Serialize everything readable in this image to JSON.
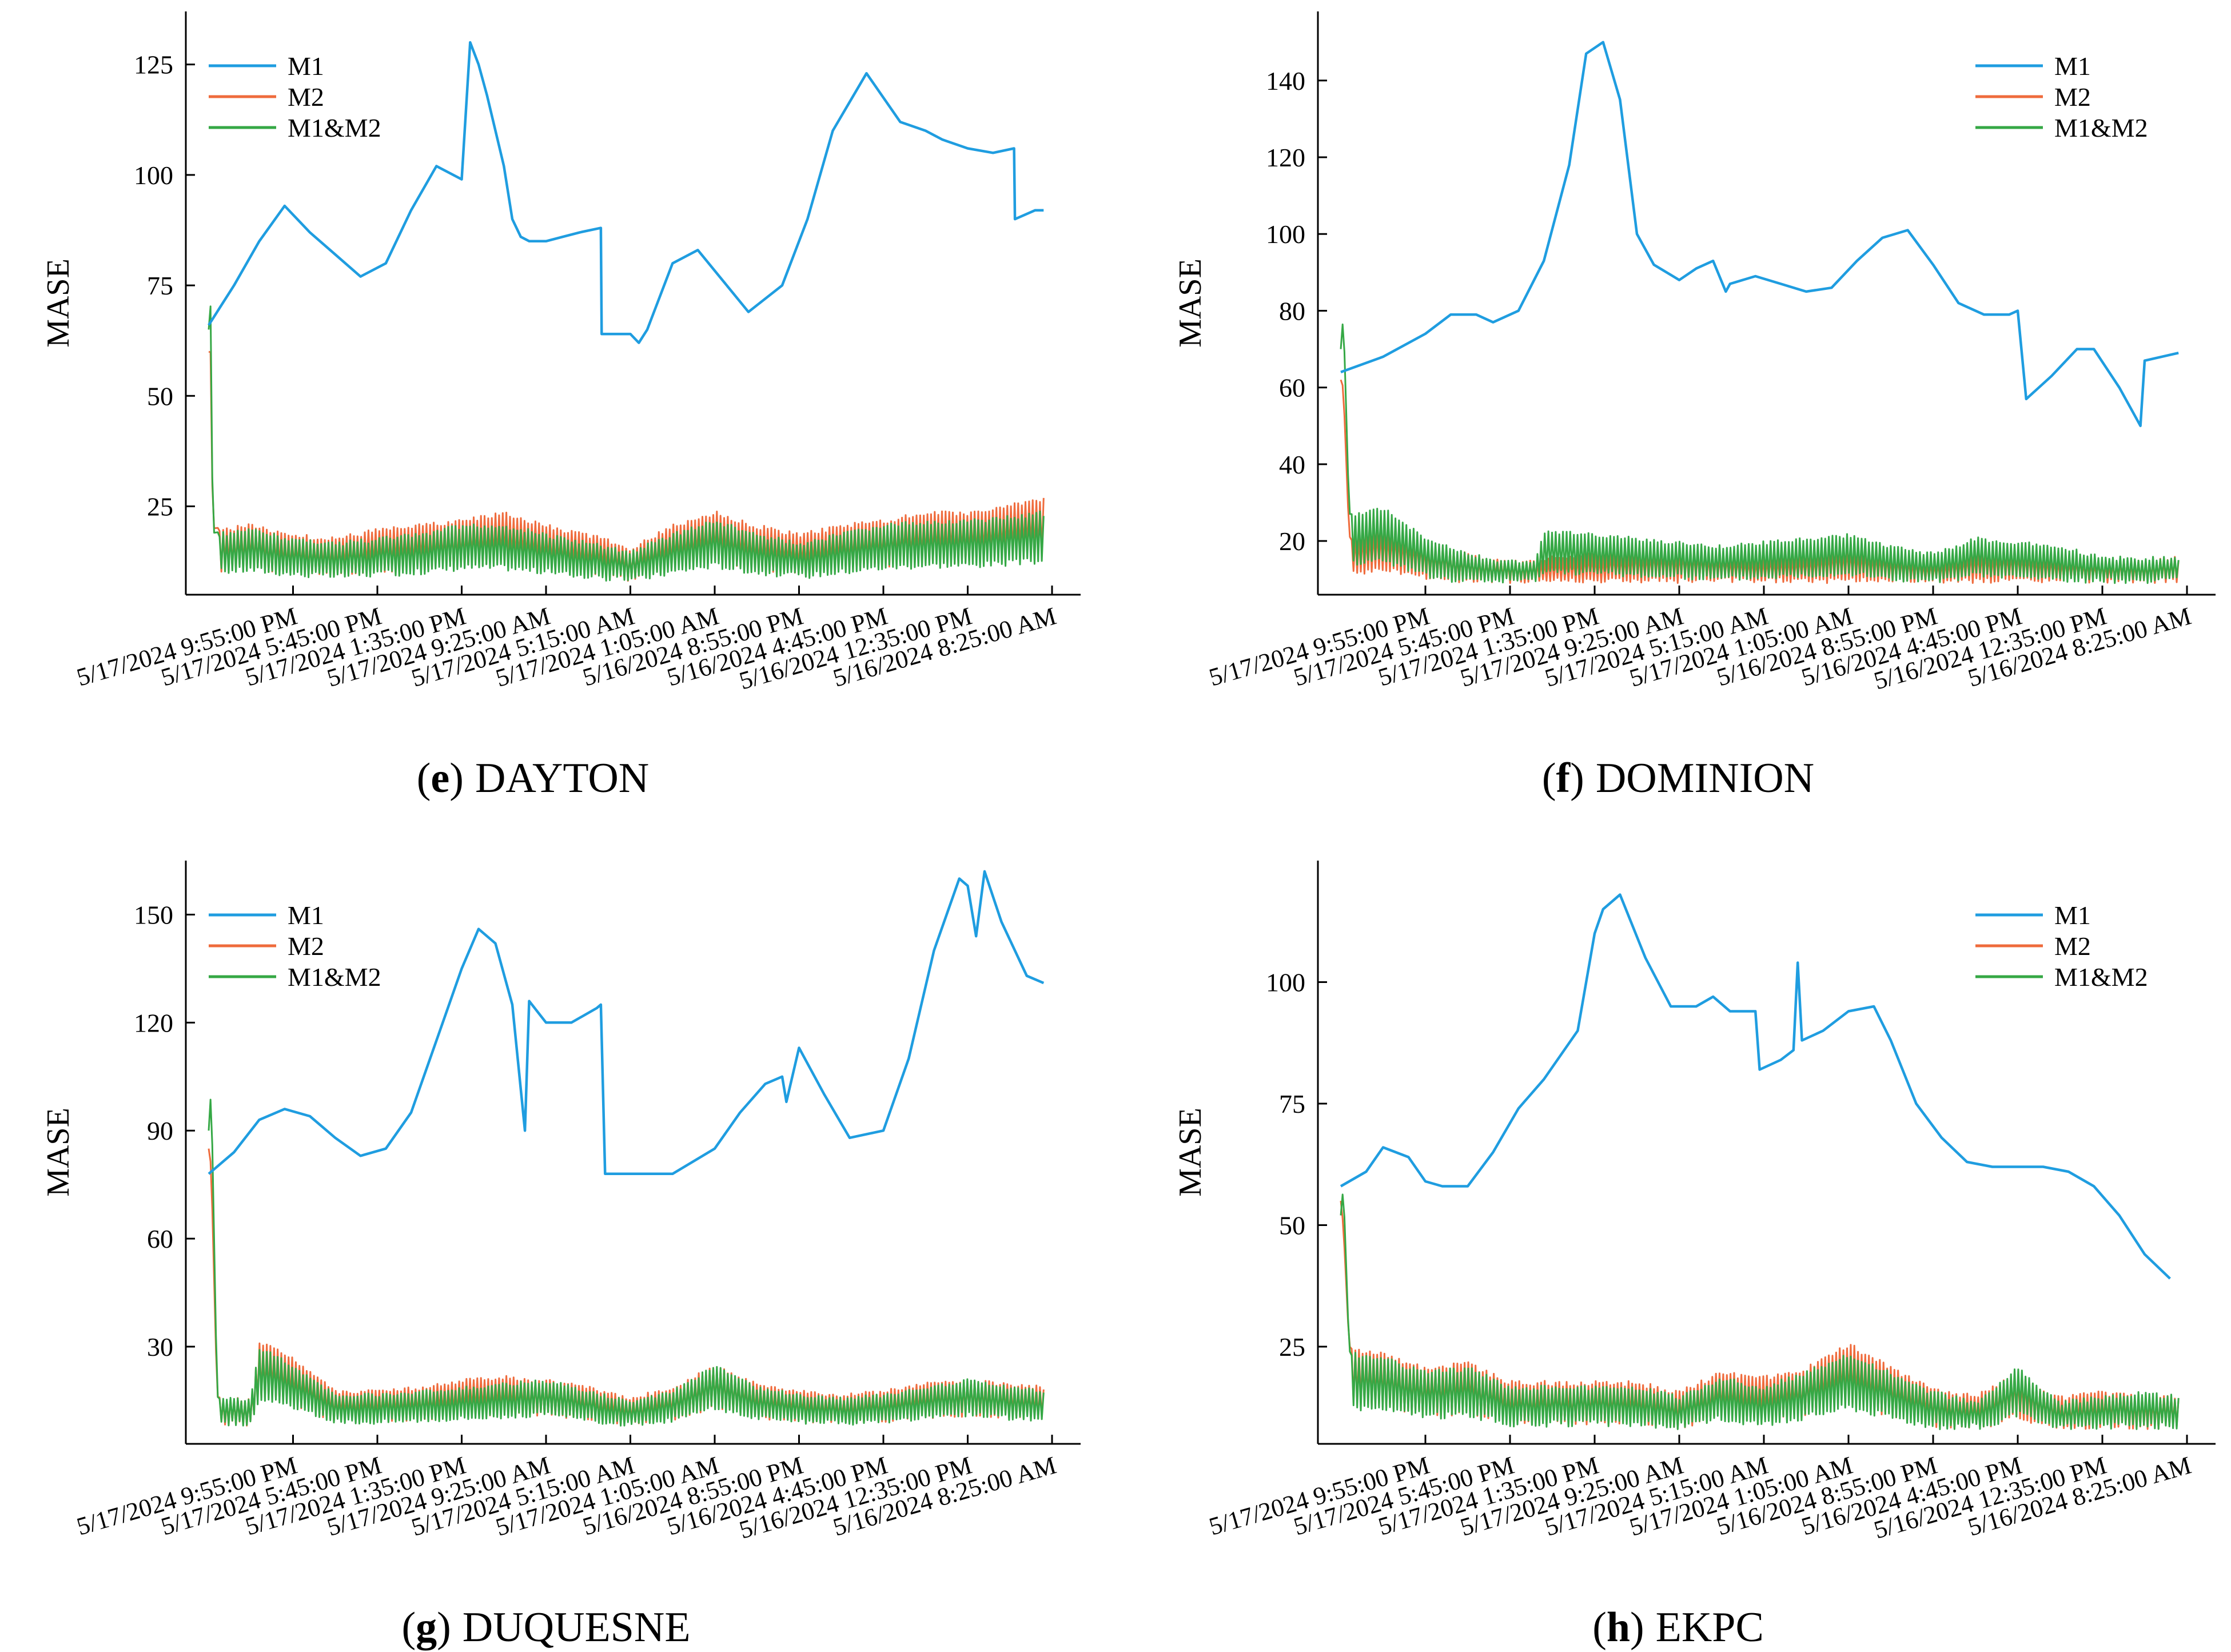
{
  "colors": {
    "M1": "#1f9de0",
    "M2": "#ef6b3c",
    "M1&M2": "#35a845",
    "axis": "#000000"
  },
  "chart_data": [
    {
      "type": "line",
      "caption": {
        "letter": "e",
        "paren_open": "(",
        "paren_close": ")",
        "title": "DAYTON"
      },
      "ylabel": "MASE",
      "ylim": [
        5,
        137
      ],
      "yticks": [
        25,
        50,
        75,
        100,
        125
      ],
      "categories": [
        "5/17/2024 9:55:00 PM",
        "5/17/2024 5:45:00 PM",
        "5/17/2024 1:35:00 PM",
        "5/17/2024 9:25:00 AM",
        "5/17/2024 5:15:00 AM",
        "5/17/2024 1:05:00 AM",
        "5/16/2024 8:55:00 PM",
        "5/16/2024 4:45:00 PM",
        "5/16/2024 12:35:00 PM",
        "5/16/2024 8:25:00 AM"
      ],
      "x_range": [
        0,
        10
      ],
      "legend_position": "top-left",
      "series": [
        {
          "name": "M1",
          "x": [
            0,
            0.3,
            0.6,
            0.9,
            1.2,
            1.5,
            1.8,
            2.1,
            2.4,
            2.7,
            3.0,
            3.1,
            3.2,
            3.3,
            3.5,
            3.6,
            3.7,
            3.8,
            4.0,
            4.2,
            4.4,
            4.65,
            4.66,
            5.0,
            5.1,
            5.2,
            5.5,
            5.8,
            6.1,
            6.4,
            6.8,
            7.1,
            7.4,
            7.8,
            8.2,
            8.5,
            8.7,
            9.0,
            9.3,
            9.55,
            9.56,
            9.8,
            9.9
          ],
          "values": [
            66,
            75,
            85,
            93,
            87,
            82,
            77,
            80,
            92,
            102,
            99,
            130,
            125,
            118,
            102,
            90,
            86,
            85,
            85,
            86,
            87,
            88,
            64,
            64,
            62,
            65,
            80,
            83,
            76,
            69,
            75,
            90,
            110,
            123,
            112,
            110,
            108,
            106,
            105,
            106,
            90,
            92,
            92
          ]
        },
        {
          "name": "M2",
          "x": [
            0,
            0.02,
            0.05,
            0.5,
            1.0,
            1.5,
            2.0,
            2.5,
            3.0,
            3.5,
            4.0,
            4.5,
            5.0,
            5.5,
            6.0,
            6.5,
            7.0,
            7.5,
            8.0,
            8.5,
            9.0,
            9.5,
            9.9
          ],
          "values": [
            60,
            62,
            20,
            21,
            19,
            18,
            20,
            21,
            22,
            24,
            21,
            19,
            16,
            21,
            24,
            21,
            19,
            21,
            22,
            24,
            24,
            26,
            27
          ]
        },
        {
          "name": "M1&M2",
          "x": [
            0,
            0.02,
            0.05,
            0.5,
            1.0,
            1.5,
            2.0,
            2.5,
            3.0,
            3.5,
            4.0,
            4.5,
            5.0,
            5.5,
            6.0,
            6.5,
            7.0,
            7.5,
            8.0,
            8.5,
            9.0,
            9.5,
            9.9
          ],
          "values": [
            65,
            73,
            19,
            20,
            18,
            17,
            18,
            19,
            21,
            21,
            19,
            17,
            15,
            19,
            22,
            19,
            17,
            19,
            21,
            22,
            22,
            23,
            24
          ]
        }
      ]
    },
    {
      "type": "line",
      "caption": {
        "letter": "f",
        "paren_open": "(",
        "paren_close": ")",
        "title": "DOMINION"
      },
      "ylabel": "MASE",
      "ylim": [
        6,
        158
      ],
      "yticks": [
        20,
        40,
        60,
        80,
        100,
        120,
        140
      ],
      "categories": [
        "5/17/2024 9:55:00 PM",
        "5/17/2024 5:45:00 PM",
        "5/17/2024 1:35:00 PM",
        "5/17/2024 9:25:00 AM",
        "5/17/2024 5:15:00 AM",
        "5/17/2024 1:05:00 AM",
        "5/16/2024 8:55:00 PM",
        "5/16/2024 4:45:00 PM",
        "5/16/2024 12:35:00 PM",
        "5/16/2024 8:25:00 AM"
      ],
      "x_range": [
        0,
        10
      ],
      "legend_position": "top-right",
      "series": [
        {
          "name": "M1",
          "x": [
            0,
            0.5,
            1.0,
            1.3,
            1.6,
            1.8,
            2.1,
            2.4,
            2.7,
            2.9,
            3.1,
            3.3,
            3.5,
            3.7,
            4.0,
            4.2,
            4.4,
            4.55,
            4.6,
            4.9,
            5.2,
            5.5,
            5.8,
            6.1,
            6.4,
            6.7,
            7.0,
            7.3,
            7.6,
            7.9,
            8.0,
            8.1,
            8.4,
            8.7,
            8.9,
            9.2,
            9.45,
            9.5,
            9.7,
            9.9
          ],
          "values": [
            64,
            68,
            74,
            79,
            79,
            77,
            80,
            93,
            118,
            147,
            150,
            135,
            100,
            92,
            88,
            91,
            93,
            85,
            87,
            89,
            87,
            85,
            86,
            93,
            99,
            101,
            92,
            82,
            79,
            79,
            80,
            57,
            63,
            70,
            70,
            60,
            50,
            67,
            68,
            69
          ]
        },
        {
          "name": "M2",
          "x": [
            0,
            0.03,
            0.1,
            0.5,
            1.0,
            1.5,
            2.0,
            2.5,
            3.0,
            3.5,
            4.0,
            4.5,
            5.0,
            5.5,
            6.0,
            6.5,
            7.0,
            7.5,
            8.0,
            8.5,
            9.0,
            9.5,
            9.9
          ],
          "values": [
            62,
            60,
            21,
            24,
            20,
            17,
            15,
            16,
            17,
            18,
            18,
            17,
            16,
            17,
            19,
            17,
            15,
            18,
            18,
            16,
            15,
            15,
            16
          ]
        },
        {
          "name": "M1&M2",
          "x": [
            0,
            0.03,
            0.1,
            0.5,
            1.0,
            1.5,
            2.0,
            2.3,
            2.4,
            3.0,
            3.5,
            4.0,
            4.5,
            5.0,
            5.5,
            6.0,
            6.5,
            7.0,
            7.5,
            8.0,
            8.5,
            9.0,
            9.5,
            9.9
          ],
          "values": [
            70,
            79,
            27,
            29,
            21,
            17,
            15,
            15,
            23,
            22,
            21,
            20,
            19,
            20,
            21,
            22,
            19,
            17,
            21,
            20,
            19,
            16,
            16,
            16
          ]
        }
      ]
    },
    {
      "type": "line",
      "caption": {
        "letter": "g",
        "paren_open": "(",
        "paren_close": ")",
        "title": "DUQUESNE"
      },
      "ylabel": "MASE",
      "ylim": [
        3,
        165
      ],
      "yticks": [
        30,
        60,
        90,
        120,
        150
      ],
      "categories": [
        "5/17/2024 9:55:00 PM",
        "5/17/2024 5:45:00 PM",
        "5/17/2024 1:35:00 PM",
        "5/17/2024 9:25:00 AM",
        "5/17/2024 5:15:00 AM",
        "5/17/2024 1:05:00 AM",
        "5/16/2024 8:55:00 PM",
        "5/16/2024 4:45:00 PM",
        "5/16/2024 12:35:00 PM",
        "5/16/2024 8:25:00 AM"
      ],
      "x_range": [
        0,
        10
      ],
      "legend_position": "top-left",
      "series": [
        {
          "name": "M1",
          "x": [
            0,
            0.3,
            0.6,
            0.9,
            1.2,
            1.5,
            1.8,
            2.1,
            2.4,
            2.7,
            3.0,
            3.2,
            3.4,
            3.6,
            3.75,
            3.8,
            4.0,
            4.3,
            4.6,
            4.65,
            4.7,
            5.0,
            5.5,
            6.0,
            6.3,
            6.6,
            6.8,
            6.85,
            7.0,
            7.3,
            7.6,
            8.0,
            8.3,
            8.6,
            8.9,
            9.0,
            9.1,
            9.2,
            9.4,
            9.7,
            9.9
          ],
          "values": [
            78,
            84,
            93,
            96,
            94,
            88,
            83,
            85,
            95,
            115,
            135,
            146,
            142,
            125,
            90,
            126,
            120,
            120,
            124,
            125,
            78,
            78,
            78,
            85,
            95,
            103,
            105,
            98,
            113,
            100,
            88,
            90,
            110,
            140,
            160,
            158,
            144,
            162,
            148,
            133,
            131
          ]
        },
        {
          "name": "M2",
          "x": [
            0,
            0.03,
            0.1,
            0.5,
            0.6,
            0.7,
            1.0,
            1.5,
            2.0,
            2.5,
            3.0,
            3.5,
            4.0,
            4.5,
            5.0,
            5.5,
            6.0,
            6.5,
            7.0,
            7.5,
            8.0,
            8.5,
            9.0,
            9.5,
            9.9
          ],
          "values": [
            85,
            80,
            16,
            16,
            31,
            31,
            27,
            18,
            18,
            19,
            21,
            22,
            21,
            19,
            16,
            19,
            25,
            20,
            18,
            17,
            18,
            20,
            21,
            20,
            19
          ]
        },
        {
          "name": "M1&M2",
          "x": [
            0,
            0.03,
            0.1,
            0.5,
            0.6,
            0.7,
            1.0,
            1.5,
            2.0,
            2.5,
            3.0,
            3.5,
            4.0,
            4.5,
            5.0,
            5.5,
            6.0,
            6.5,
            7.0,
            7.5,
            8.0,
            8.5,
            9.0,
            9.5,
            9.9
          ],
          "values": [
            90,
            102,
            16,
            16,
            30,
            29,
            25,
            17,
            17,
            18,
            19,
            20,
            21,
            18,
            15,
            18,
            25,
            19,
            17,
            16,
            17,
            19,
            21,
            19,
            18
          ]
        }
      ]
    },
    {
      "type": "line",
      "caption": {
        "letter": "h",
        "paren_open": "(",
        "paren_close": ")",
        "title": "EKPC"
      },
      "ylabel": "MASE",
      "ylim": [
        5,
        125
      ],
      "yticks": [
        25,
        50,
        75,
        100
      ],
      "categories": [
        "5/17/2024 9:55:00 PM",
        "5/17/2024 5:45:00 PM",
        "5/17/2024 1:35:00 PM",
        "5/17/2024 9:25:00 AM",
        "5/17/2024 5:15:00 AM",
        "5/17/2024 1:05:00 AM",
        "5/16/2024 8:55:00 PM",
        "5/16/2024 4:45:00 PM",
        "5/16/2024 12:35:00 PM",
        "5/16/2024 8:25:00 AM"
      ],
      "x_range": [
        0,
        10
      ],
      "legend_position": "top-right",
      "series": [
        {
          "name": "M1",
          "x": [
            0,
            0.3,
            0.5,
            0.8,
            1.0,
            1.2,
            1.5,
            1.8,
            2.1,
            2.4,
            2.8,
            3.0,
            3.1,
            3.3,
            3.6,
            3.9,
            4.2,
            4.4,
            4.6,
            4.9,
            4.95,
            5.2,
            5.35,
            5.4,
            5.45,
            5.7,
            6.0,
            6.3,
            6.5,
            6.8,
            7.1,
            7.4,
            7.7,
            8.0,
            8.3,
            8.6,
            8.9,
            9.2,
            9.5,
            9.8
          ],
          "values": [
            58,
            61,
            66,
            64,
            59,
            58,
            58,
            65,
            74,
            80,
            90,
            110,
            115,
            118,
            105,
            95,
            95,
            97,
            94,
            94,
            82,
            84,
            86,
            104,
            88,
            90,
            94,
            95,
            88,
            75,
            68,
            63,
            62,
            62,
            62,
            61,
            58,
            52,
            44,
            39
          ]
        },
        {
          "name": "M2",
          "x": [
            0,
            0.03,
            0.1,
            0.5,
            1.0,
            1.5,
            2.0,
            2.5,
            3.0,
            3.5,
            4.0,
            4.5,
            5.0,
            5.5,
            6.0,
            6.5,
            7.0,
            7.5,
            8.0,
            8.5,
            9.0,
            9.5,
            9.9
          ],
          "values": [
            55,
            50,
            25,
            24,
            21,
            22,
            18,
            18,
            18,
            18,
            16,
            20,
            19,
            21,
            26,
            21,
            17,
            15,
            20,
            15,
            16,
            15,
            15
          ]
        },
        {
          "name": "M1&M2",
          "x": [
            0,
            0.03,
            0.1,
            0.5,
            1.0,
            1.5,
            2.0,
            2.5,
            3.0,
            3.5,
            4.0,
            4.5,
            5.0,
            5.5,
            6.0,
            6.5,
            7.0,
            7.5,
            8.0,
            8.5,
            9.0,
            9.5,
            9.9
          ],
          "values": [
            52,
            58,
            24,
            23,
            20,
            21,
            17,
            17,
            17,
            17,
            15,
            19,
            17,
            20,
            24,
            20,
            16,
            14,
            21,
            14,
            15,
            16,
            15
          ]
        }
      ]
    }
  ]
}
